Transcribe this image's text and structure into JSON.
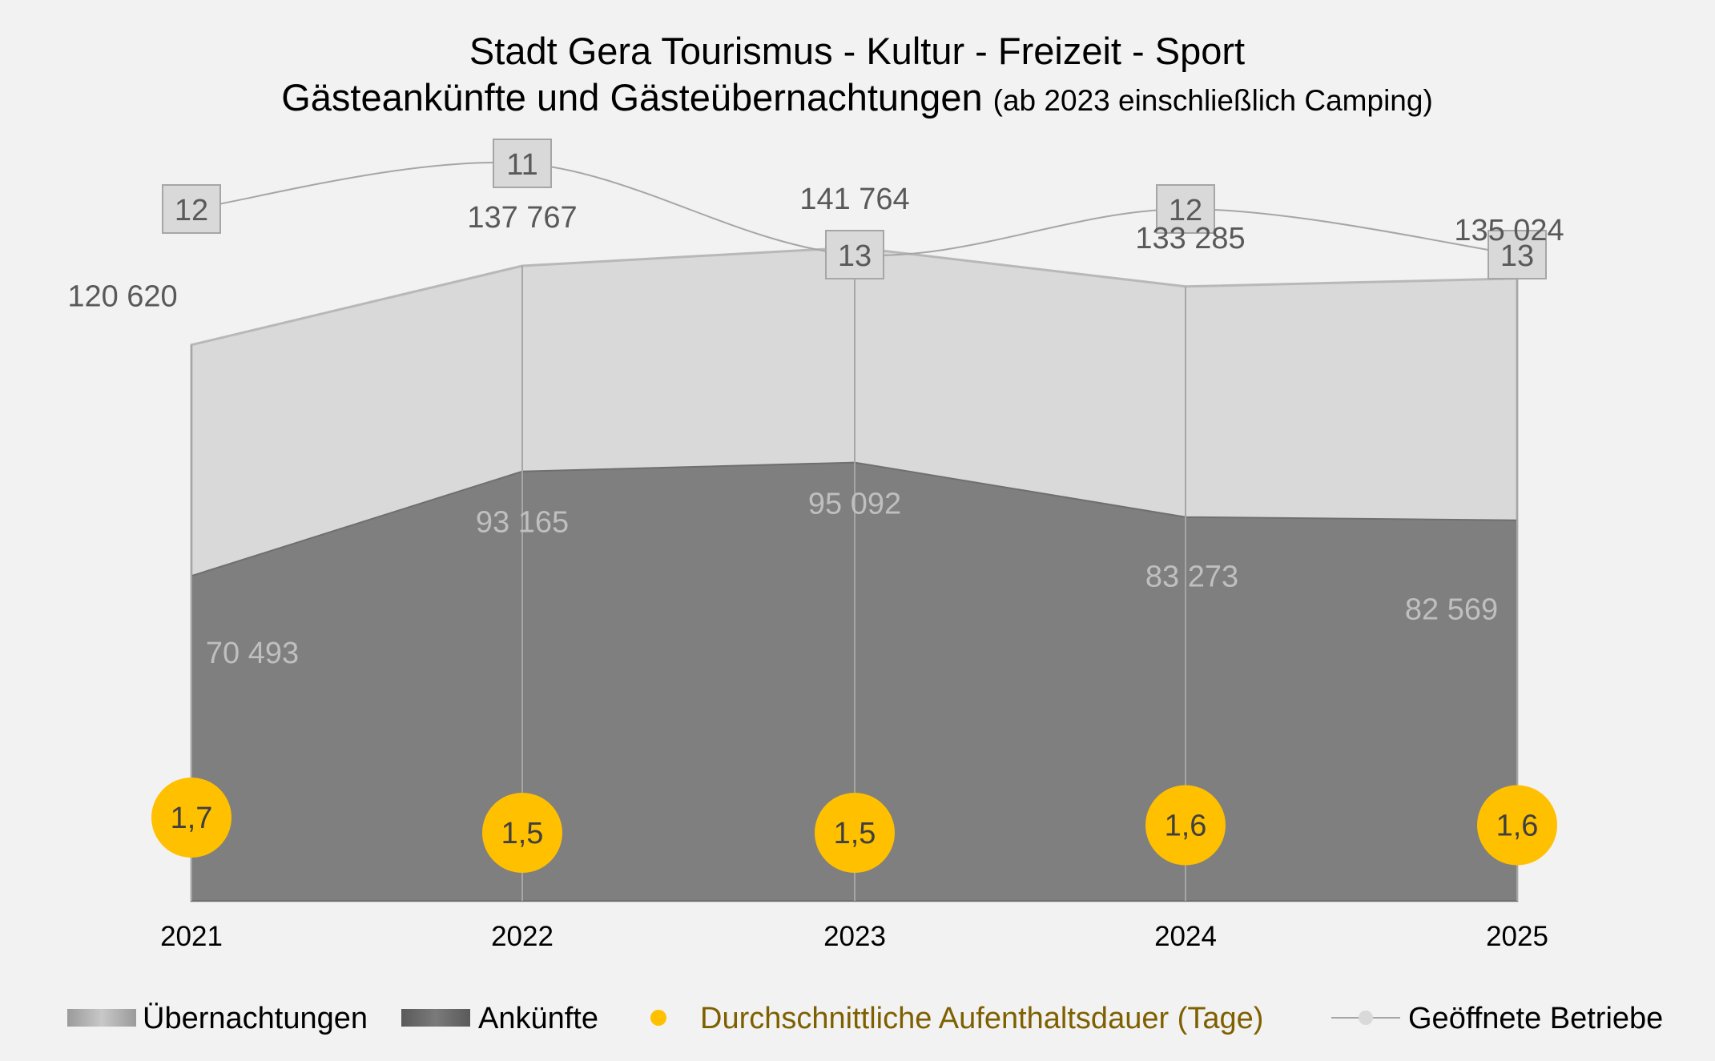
{
  "chart_data": {
    "type": "area",
    "title": "Stadt Gera Tourismus - Kultur - Freizeit - Sport",
    "subtitle_main": "Gästeankünfte und Gästeübernachtungen",
    "subtitle_note": "(ab 2023 einschließlich Camping)",
    "categories": [
      "2021",
      "2022",
      "2023",
      "2024",
      "2025"
    ],
    "series": [
      {
        "name": "Übernachtungen",
        "kind": "area",
        "color": "#d9d9d9",
        "values": [
          120620,
          137767,
          141764,
          133285,
          135024
        ],
        "labels": [
          "120 620",
          "137 767",
          "141 764",
          "133 285",
          "135 024"
        ]
      },
      {
        "name": "Ankünfte",
        "kind": "area",
        "color": "#7f7f7f",
        "values": [
          70493,
          93165,
          95092,
          83273,
          82569
        ],
        "labels": [
          "70 493",
          "93 165",
          "95 092",
          "83 273",
          "82 569"
        ]
      },
      {
        "name": "Durchschnittliche Aufenthaltsdauer (Tage)",
        "kind": "marker",
        "color": "#ffc000",
        "values": [
          1.7,
          1.5,
          1.5,
          1.6,
          1.6
        ],
        "labels": [
          "1,7",
          "1,5",
          "1,5",
          "1,6",
          "1,6"
        ]
      },
      {
        "name": "Geöffnete Betriebe",
        "kind": "line",
        "color": "#a6a6a6",
        "values": [
          12,
          11,
          13,
          12,
          13
        ],
        "labels": [
          "12",
          "11",
          "13",
          "12",
          "13"
        ]
      }
    ],
    "ylim": [
      0,
      141764
    ],
    "grid": false,
    "legend_position": "bottom"
  }
}
